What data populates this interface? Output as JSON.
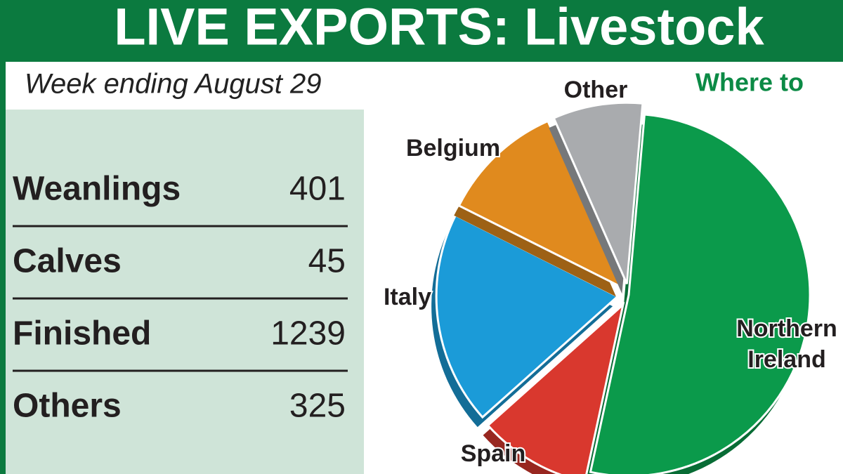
{
  "header": {
    "title": "LIVE EXPORTS: Livestock"
  },
  "table": {
    "subtitle": "Week ending August 29",
    "rows": [
      [
        "Weanlings",
        401
      ],
      [
        "Calves",
        45
      ],
      [
        "Finished",
        1239
      ],
      [
        "Others",
        325
      ]
    ]
  },
  "chart_data": {
    "type": "pie",
    "title": "Where to",
    "categories": [
      "Northern Ireland",
      "Spain",
      "Italy",
      "Belgium",
      "Other"
    ],
    "values": [
      52,
      10,
      19,
      11,
      8
    ],
    "colors": [
      "#0b9a4b",
      "#d9382e",
      "#1b9bd8",
      "#e08a1e",
      "#a9abae"
    ]
  }
}
